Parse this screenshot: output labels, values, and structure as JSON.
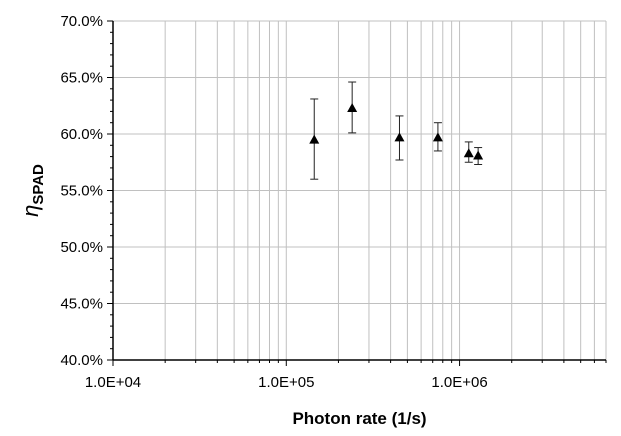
{
  "chart_data": {
    "type": "scatter",
    "title": "",
    "xlabel": "Photon rate (1/s)",
    "ylabel": {
      "symbol": "η",
      "subscript": "SPAD"
    },
    "x_scale": "log",
    "xlim": [
      10000,
      7000000
    ],
    "ylim": [
      40.0,
      70.0
    ],
    "x_ticks": [
      {
        "value": 10000,
        "label": "1.0E+04"
      },
      {
        "value": 100000,
        "label": "1.0E+05"
      },
      {
        "value": 1000000,
        "label": "1.0E+06"
      }
    ],
    "y_ticks": [
      {
        "value": 40,
        "label": "40.0%"
      },
      {
        "value": 45,
        "label": "45.0%"
      },
      {
        "value": 50,
        "label": "50.0%"
      },
      {
        "value": 55,
        "label": "55.0%"
      },
      {
        "value": 60,
        "label": "60.0%"
      },
      {
        "value": 65,
        "label": "65.0%"
      },
      {
        "value": 70,
        "label": "70.0%"
      }
    ],
    "grid": true,
    "legend": "none",
    "marker": "triangle",
    "marker_color": "#000000",
    "grid_color": "#c0c0c0",
    "series": [
      {
        "x": [
          145000,
          240000,
          450000,
          750000,
          1130000,
          1280000
        ],
        "y": [
          59.5,
          62.3,
          59.7,
          59.7,
          58.3,
          58.1
        ],
        "y_err_low": [
          56.0,
          60.1,
          57.7,
          58.5,
          57.5,
          57.3
        ],
        "y_err_high": [
          63.1,
          64.6,
          61.6,
          61.0,
          59.3,
          58.8
        ]
      }
    ]
  }
}
